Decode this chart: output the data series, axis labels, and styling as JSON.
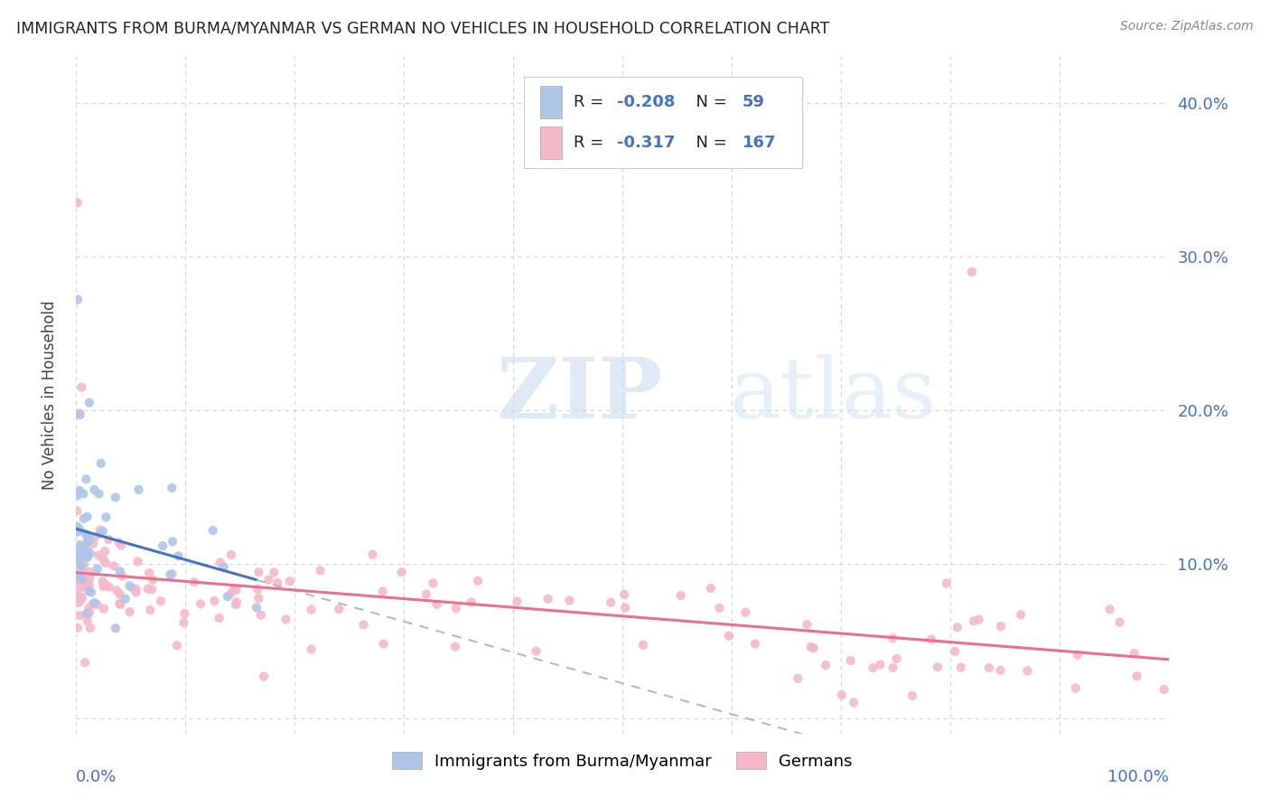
{
  "title": "IMMIGRANTS FROM BURMA/MYANMAR VS GERMAN NO VEHICLES IN HOUSEHOLD CORRELATION CHART",
  "source": "Source: ZipAtlas.com",
  "ylabel": "No Vehicles in Household",
  "watermark_zip": "ZIP",
  "watermark_atlas": "atlas",
  "legend_blue_label": "Immigrants from Burma/Myanmar",
  "legend_pink_label": "Germans",
  "R_blue": -0.208,
  "N_blue": 59,
  "R_pink": -0.317,
  "N_pink": 167,
  "blue_color": "#adc6e8",
  "pink_color": "#f5b8c8",
  "blue_line_color": "#4472c4",
  "pink_line_color": "#e8708a",
  "dashed_line_color": "#b8b8b8",
  "grid_color": "#c8d4e8",
  "background_color": "#ffffff",
  "title_color": "#222222",
  "axis_label_color": "#4472c4",
  "right_tick_color": "#4472c4",
  "yticks": [
    0.0,
    0.1,
    0.2,
    0.3,
    0.4
  ],
  "ytick_labels": [
    "",
    "10.0%",
    "20.0%",
    "30.0%",
    "40.0%"
  ],
  "ymin": -0.01,
  "ymax": 0.43,
  "xmin": 0.0,
  "xmax": 1.0
}
